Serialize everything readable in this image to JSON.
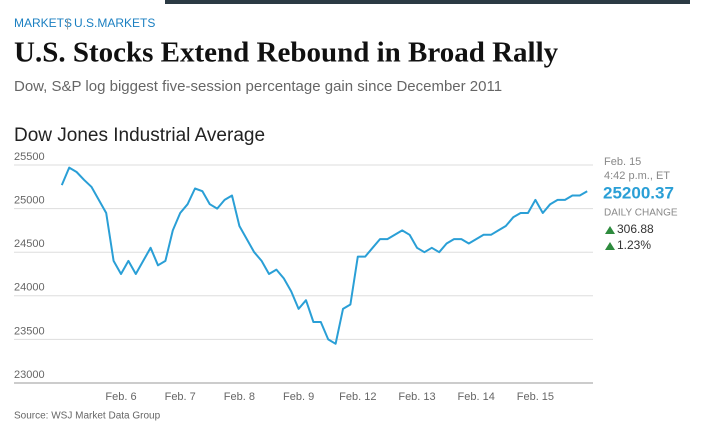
{
  "header": {
    "section": "MARKETS",
    "subsection": "U.S.MARKETS",
    "headline": "U.S. Stocks Extend Rebound in Broad Rally",
    "dek": "Dow, S&P log biggest five-session percentage gain since December 2011"
  },
  "panel": {
    "date": "Feb. 15",
    "time": "4:42 p.m., ET",
    "price": "25200.37",
    "change_label": "DAILY CHANGE",
    "change": "306.88",
    "change_pct": "1.23%"
  },
  "source": "Source: WSJ Market Data Group",
  "chart_data": {
    "type": "line",
    "title": "Dow Jones Industrial Average",
    "categories": [
      null,
      null,
      null,
      null,
      null,
      null,
      null,
      null,
      "Feb. 6",
      null,
      null,
      null,
      null,
      null,
      null,
      null,
      "Feb. 7",
      null,
      null,
      null,
      null,
      null,
      null,
      null,
      "Feb. 8",
      null,
      null,
      null,
      null,
      null,
      null,
      null,
      "Feb. 9",
      null,
      null,
      null,
      null,
      null,
      null,
      null,
      "Feb. 12",
      null,
      null,
      null,
      null,
      null,
      null,
      null,
      "Feb. 13",
      null,
      null,
      null,
      null,
      null,
      null,
      null,
      "Feb. 14",
      null,
      null,
      null,
      null,
      null,
      null,
      null,
      "Feb. 15",
      null,
      null,
      null,
      null,
      null,
      null,
      null
    ],
    "series": [
      {
        "name": "Dow Jones Industrial Average",
        "color": "#2a9fd6",
        "values": [
          25270,
          25470,
          25420,
          25330,
          25250,
          25100,
          24950,
          24400,
          24250,
          24400,
          24250,
          24400,
          24550,
          24350,
          24400,
          24750,
          24950,
          25050,
          25230,
          25200,
          25050,
          25000,
          25100,
          25150,
          24800,
          24650,
          24500,
          24400,
          24250,
          24300,
          24200,
          24050,
          23850,
          23950,
          23700,
          23700,
          23500,
          23450,
          23850,
          23900,
          24450,
          24450,
          24550,
          24650,
          24650,
          24700,
          24750,
          24700,
          24550,
          24500,
          24550,
          24500,
          24600,
          24650,
          24650,
          24600,
          24650,
          24700,
          24700,
          24750,
          24800,
          24900,
          24950,
          24950,
          25100,
          24950,
          25050,
          25100,
          25100,
          25150,
          25150,
          25200
        ]
      }
    ],
    "ylim": [
      23000,
      25500
    ],
    "yticks": [
      23000,
      23500,
      24000,
      24500,
      25000,
      25500
    ],
    "grid": true
  }
}
